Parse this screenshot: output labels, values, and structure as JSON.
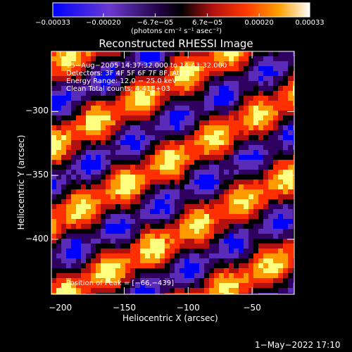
{
  "colorbar": {
    "tick_labels": [
      "−0.00033",
      "−0.00020",
      "−6.7e−05",
      "6.7e−05",
      "0.00020",
      "0.00033"
    ],
    "tick_values": [
      -0.00033,
      -0.0002,
      -6.7e-05,
      6.7e-05,
      0.0002,
      0.00033
    ],
    "range": [
      -0.00033,
      0.00033
    ],
    "units_text": "(photons cm⁻² s⁻¹ asec⁻²)"
  },
  "info": {
    "line1": "15−Aug−2005 14:37:32.000 to 14:43:32.000",
    "line2": "Detectors: 3F 4F 5F 6F 7F 8F, Att 0",
    "line3": "Energy Range: 12.0 − 25.0 keV",
    "line4": "Clean     Total counts: 4.41E+03"
  },
  "peak_text": "Position of Peak = [−66,−439]",
  "timestamp": "1−May−2022 17:10",
  "chart_data": {
    "type": "heatmap",
    "title": "Reconstructed RHESSI Image",
    "xlabel": "Heliocentric X (arcsec)",
    "ylabel": "Heliocentric Y (arcsec)",
    "xlim": [
      -207,
      -17
    ],
    "ylim": [
      -443,
      -253
    ],
    "x_ticks": [
      -200,
      -150,
      -100,
      -50
    ],
    "x_tick_labels": [
      "−200",
      "−150",
      "−100",
      "−50"
    ],
    "y_ticks": [
      -300,
      -350,
      -400
    ],
    "y_tick_labels": [
      "−300",
      "−350",
      "−400"
    ],
    "peak": [
      -66,
      -439
    ],
    "colormap": [
      "#0000ff",
      "#5a2ab8",
      "#300060",
      "#000000",
      "#b01010",
      "#ff3000",
      "#ff9a00",
      "#ffff80"
    ]
  }
}
